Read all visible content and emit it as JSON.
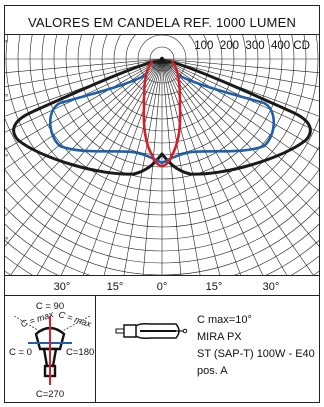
{
  "header": {
    "title": "VALORES EM CANDELA REF. 1000 LUMEN",
    "cd_scale": "100  200  300  400 CD"
  },
  "angle_labels": [
    "30°",
    "15°",
    "0°",
    "15°",
    "30°"
  ],
  "left_edge_ticks": [
    "°",
    "°",
    "°",
    "°"
  ],
  "cplane": {
    "c90": "C = 90",
    "c0": "C = 0",
    "c180": "C=180",
    "c270": "C=270",
    "cmax_left": "C = max",
    "cmax_right": "C = max"
  },
  "lamp_info": {
    "line1": "C max=10°",
    "line2": "MIRA PX",
    "line3": "ST (SAP-T) 100W - E40",
    "line4": "pos. A"
  },
  "colors": {
    "black_curve": "#1a1a1a",
    "blue_curve": "#1f5fa8",
    "red_curve": "#d4202a",
    "grid": "#222222"
  },
  "icons": {
    "lamp": "sodium-lamp-icon",
    "luminaire": "luminaire-plan-icon"
  }
}
